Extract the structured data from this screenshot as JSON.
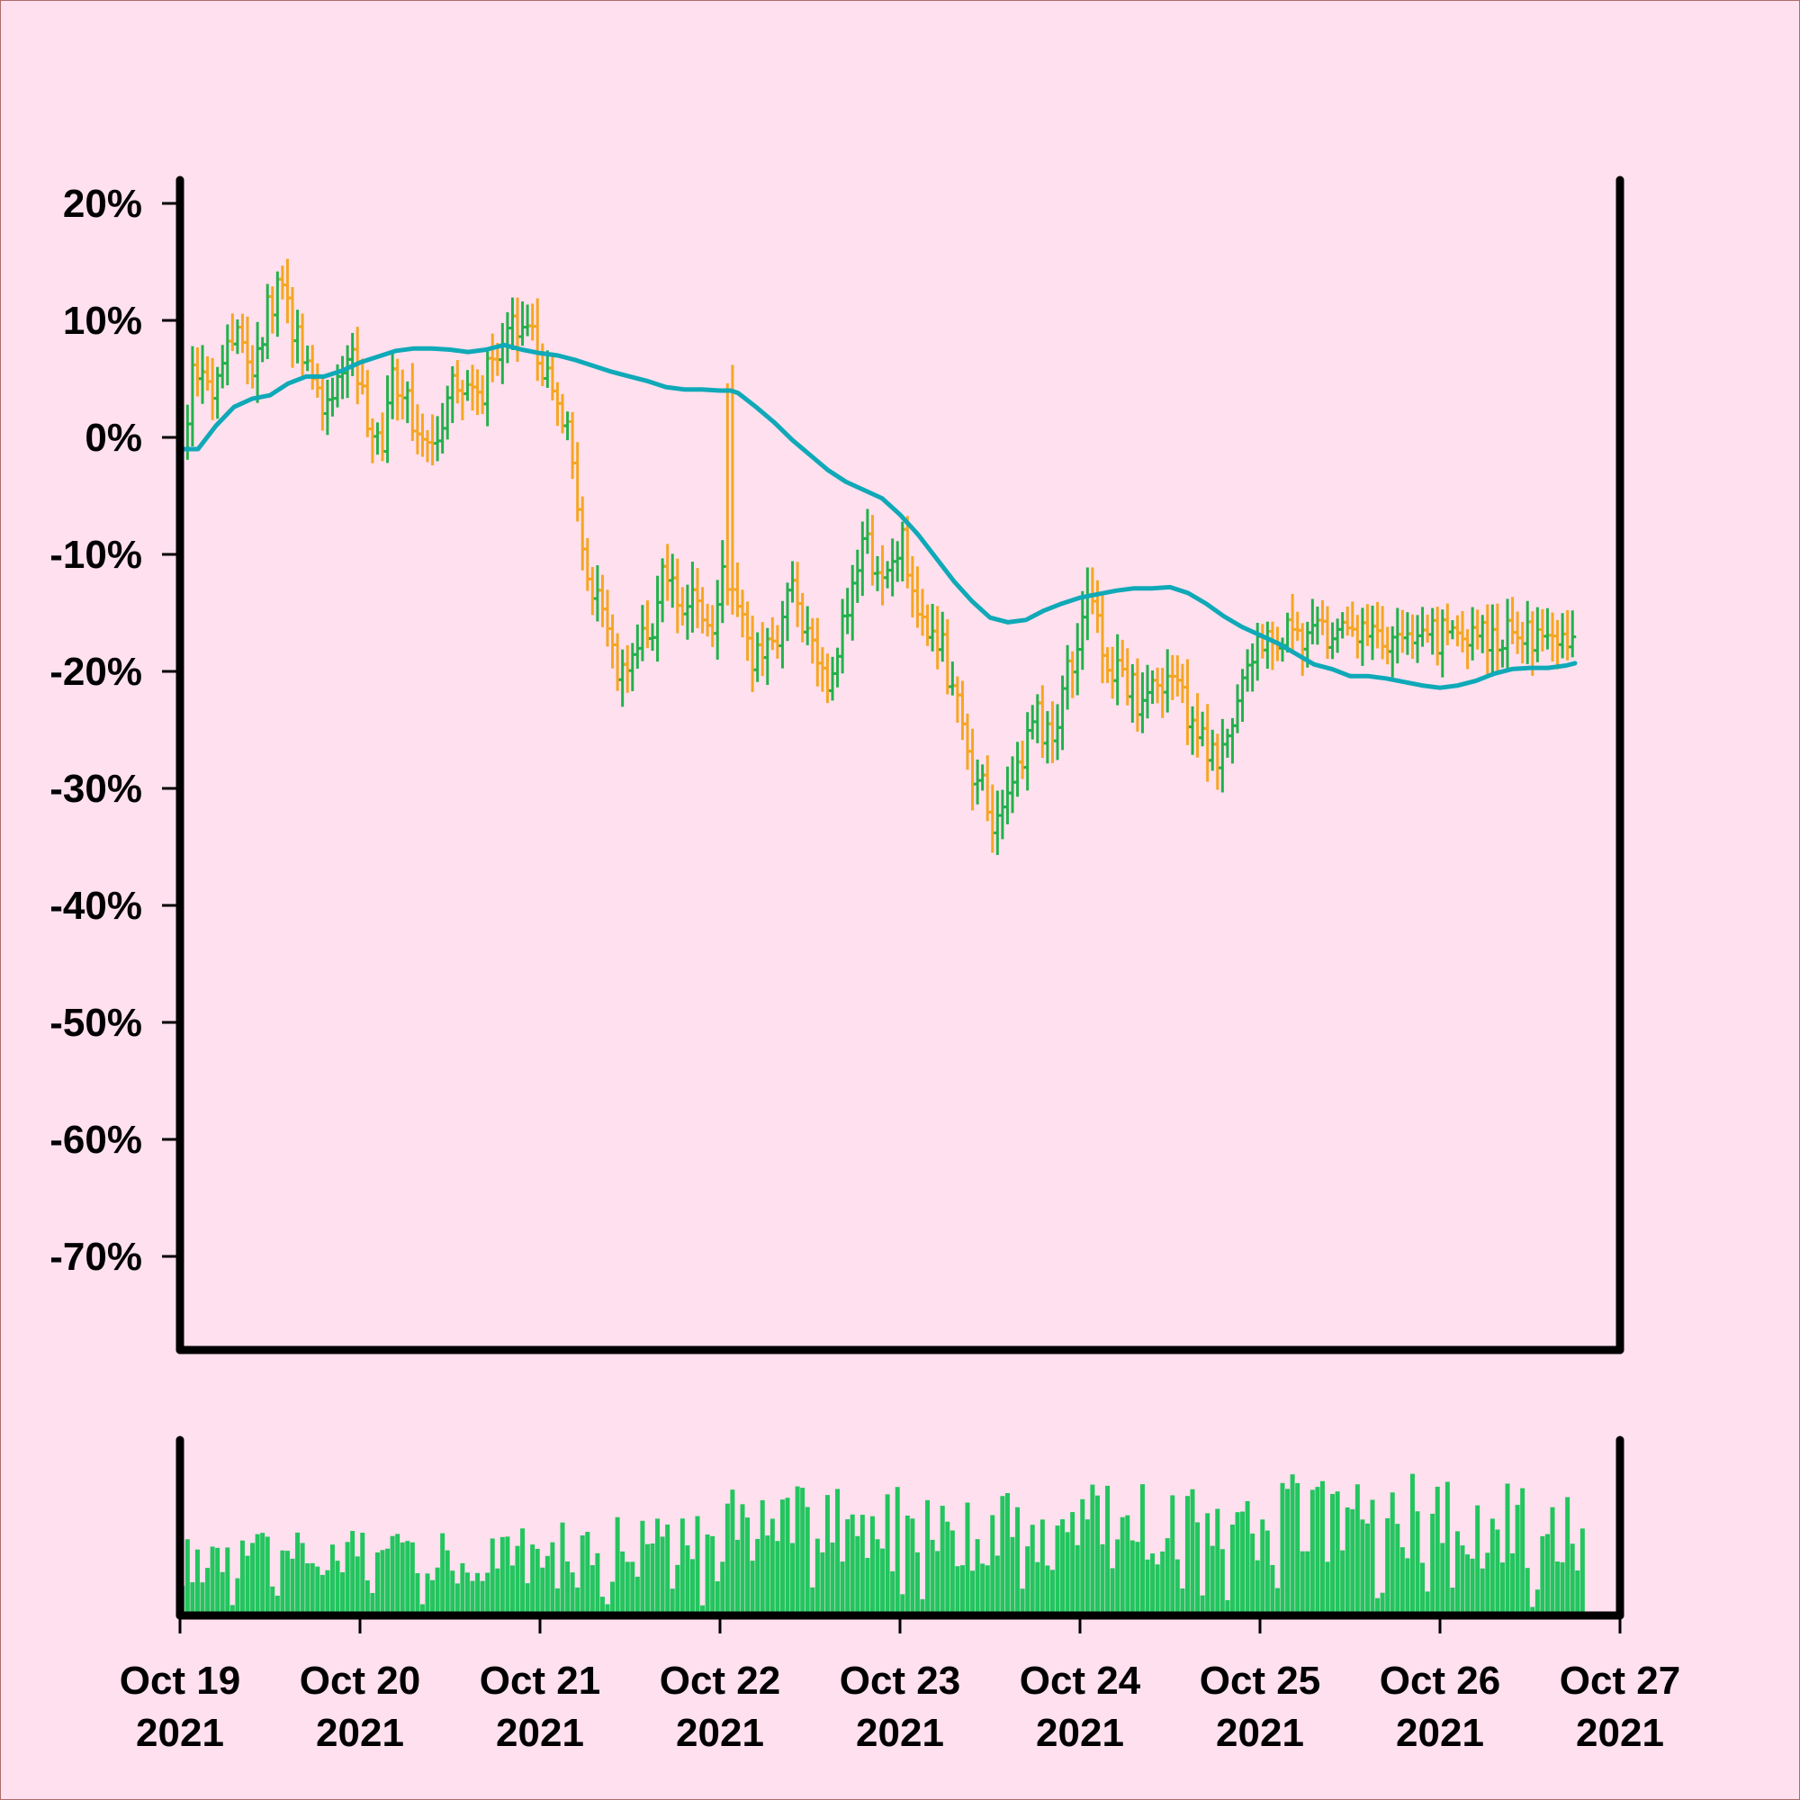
{
  "chart_data": {
    "type": "ohlc",
    "price_panel": {
      "y_axis": {
        "ticks": [
          20,
          10,
          0,
          -10,
          -20,
          -30,
          -40,
          -50,
          -60,
          -70
        ],
        "tick_labels": [
          "20%",
          "10%",
          "0%",
          "-10%",
          "-20%",
          "-30%",
          "-40%",
          "-50%",
          "-60%",
          "-70%"
        ],
        "range": [
          -78,
          22
        ]
      },
      "up_color": "#22b14c",
      "down_color": "#f5a623",
      "moving_average": {
        "color": "#0fa9b8",
        "points": [
          [
            0.0,
            -1
          ],
          [
            0.1,
            -1
          ],
          [
            0.2,
            1
          ],
          [
            0.3,
            2.6
          ],
          [
            0.4,
            3.3
          ],
          [
            0.5,
            3.6
          ],
          [
            0.6,
            4.6
          ],
          [
            0.7,
            5.2
          ],
          [
            0.8,
            5.2
          ],
          [
            0.9,
            5.7
          ],
          [
            1.0,
            6.4
          ],
          [
            1.1,
            6.9
          ],
          [
            1.2,
            7.4
          ],
          [
            1.3,
            7.6
          ],
          [
            1.4,
            7.6
          ],
          [
            1.5,
            7.5
          ],
          [
            1.6,
            7.3
          ],
          [
            1.7,
            7.5
          ],
          [
            1.8,
            7.9
          ],
          [
            1.9,
            7.5
          ],
          [
            2.0,
            7.2
          ],
          [
            2.1,
            7.0
          ],
          [
            2.2,
            6.6
          ],
          [
            2.3,
            6.1
          ],
          [
            2.4,
            5.6
          ],
          [
            2.5,
            5.2
          ],
          [
            2.6,
            4.8
          ],
          [
            2.7,
            4.3
          ],
          [
            2.8,
            4.1
          ],
          [
            2.9,
            4.1
          ],
          [
            3.0,
            4.0
          ],
          [
            3.06,
            4.0
          ],
          [
            3.1,
            3.8
          ],
          [
            3.2,
            2.6
          ],
          [
            3.3,
            1.3
          ],
          [
            3.4,
            -0.2
          ],
          [
            3.5,
            -1.5
          ],
          [
            3.6,
            -2.8
          ],
          [
            3.7,
            -3.8
          ],
          [
            3.8,
            -4.5
          ],
          [
            3.9,
            -5.2
          ],
          [
            4.0,
            -6.6
          ],
          [
            4.1,
            -8.3
          ],
          [
            4.2,
            -10.3
          ],
          [
            4.3,
            -12.3
          ],
          [
            4.4,
            -14.0
          ],
          [
            4.5,
            -15.4
          ],
          [
            4.6,
            -15.8
          ],
          [
            4.7,
            -15.6
          ],
          [
            4.8,
            -14.8
          ],
          [
            4.9,
            -14.2
          ],
          [
            5.0,
            -13.7
          ],
          [
            5.1,
            -13.4
          ],
          [
            5.2,
            -13.1
          ],
          [
            5.3,
            -12.9
          ],
          [
            5.4,
            -12.9
          ],
          [
            5.5,
            -12.8
          ],
          [
            5.6,
            -13.3
          ],
          [
            5.7,
            -14.2
          ],
          [
            5.8,
            -15.3
          ],
          [
            5.9,
            -16.2
          ],
          [
            6.0,
            -16.9
          ],
          [
            6.1,
            -17.6
          ],
          [
            6.2,
            -18.5
          ],
          [
            6.3,
            -19.4
          ],
          [
            6.4,
            -19.8
          ],
          [
            6.5,
            -20.4
          ],
          [
            6.6,
            -20.4
          ],
          [
            6.7,
            -20.6
          ],
          [
            6.8,
            -20.9
          ],
          [
            6.9,
            -21.2
          ],
          [
            7.0,
            -21.4
          ],
          [
            7.1,
            -21.2
          ],
          [
            7.2,
            -20.8
          ],
          [
            7.3,
            -20.2
          ],
          [
            7.4,
            -19.8
          ],
          [
            7.5,
            -19.7
          ],
          [
            7.6,
            -19.7
          ],
          [
            7.7,
            -19.5
          ],
          [
            7.75,
            -19.3
          ]
        ]
      },
      "bars_per_day": 36,
      "anchors": [
        [
          0.0,
          0
        ],
        [
          0.1,
          6
        ],
        [
          0.17,
          3
        ],
        [
          0.3,
          9
        ],
        [
          0.4,
          5
        ],
        [
          0.5,
          11
        ],
        [
          0.55,
          14
        ],
        [
          0.65,
          9
        ],
        [
          0.7,
          6
        ],
        [
          0.8,
          3
        ],
        [
          0.95,
          7
        ],
        [
          1.1,
          -1
        ],
        [
          1.2,
          5
        ],
        [
          1.35,
          -1
        ],
        [
          1.45,
          1
        ],
        [
          1.55,
          5
        ],
        [
          1.65,
          3
        ],
        [
          1.75,
          8
        ],
        [
          1.9,
          10
        ],
        [
          2.05,
          5
        ],
        [
          2.1,
          3
        ],
        [
          2.3,
          -13
        ],
        [
          2.45,
          -21
        ],
        [
          2.52,
          -17
        ],
        [
          2.6,
          -18
        ],
        [
          2.68,
          -11
        ],
        [
          2.8,
          -14
        ],
        [
          2.95,
          -16
        ],
        [
          3.02,
          -12
        ],
        [
          3.1,
          -15
        ],
        [
          3.2,
          -19
        ],
        [
          3.3,
          -17
        ],
        [
          3.4,
          -12
        ],
        [
          3.5,
          -18
        ],
        [
          3.6,
          -22
        ],
        [
          3.7,
          -14
        ],
        [
          3.8,
          -9
        ],
        [
          3.9,
          -12
        ],
        [
          4.0,
          -9
        ],
        [
          4.1,
          -14
        ],
        [
          4.2,
          -17
        ],
        [
          4.3,
          -21
        ],
        [
          4.4,
          -29
        ],
        [
          4.55,
          -33
        ],
        [
          4.65,
          -28
        ],
        [
          4.75,
          -24
        ],
        [
          4.85,
          -26
        ],
        [
          4.95,
          -19
        ],
        [
          5.05,
          -12
        ],
        [
          5.15,
          -19
        ],
        [
          5.25,
          -21
        ],
        [
          5.35,
          -23
        ],
        [
          5.45,
          -21
        ],
        [
          5.55,
          -22
        ],
        [
          5.65,
          -25
        ],
        [
          5.75,
          -27
        ],
        [
          5.85,
          -24
        ],
        [
          5.93,
          -20
        ],
        [
          6.0,
          -17
        ]
      ],
      "gap_down": {
        "at": 3.06,
        "from": 4,
        "to": -13
      }
    },
    "volume_panel": {
      "color": "#22c55e",
      "bars_per_day": 36,
      "relative_level_by_day": [
        0.38,
        0.4,
        0.45,
        0.58,
        0.55,
        0.6,
        0.64,
        0.6
      ]
    },
    "x_axis": {
      "tick_labels_line1": [
        "Oct 19",
        "Oct 20",
        "Oct 21",
        "Oct 22",
        "Oct 23",
        "Oct 24",
        "Oct 25",
        "Oct 26",
        "Oct 27"
      ],
      "tick_labels_line2": [
        "2021",
        "2021",
        "2021",
        "2021",
        "2021",
        "2021",
        "2021",
        "2021",
        "2021"
      ],
      "range_days": [
        0,
        8
      ]
    }
  }
}
